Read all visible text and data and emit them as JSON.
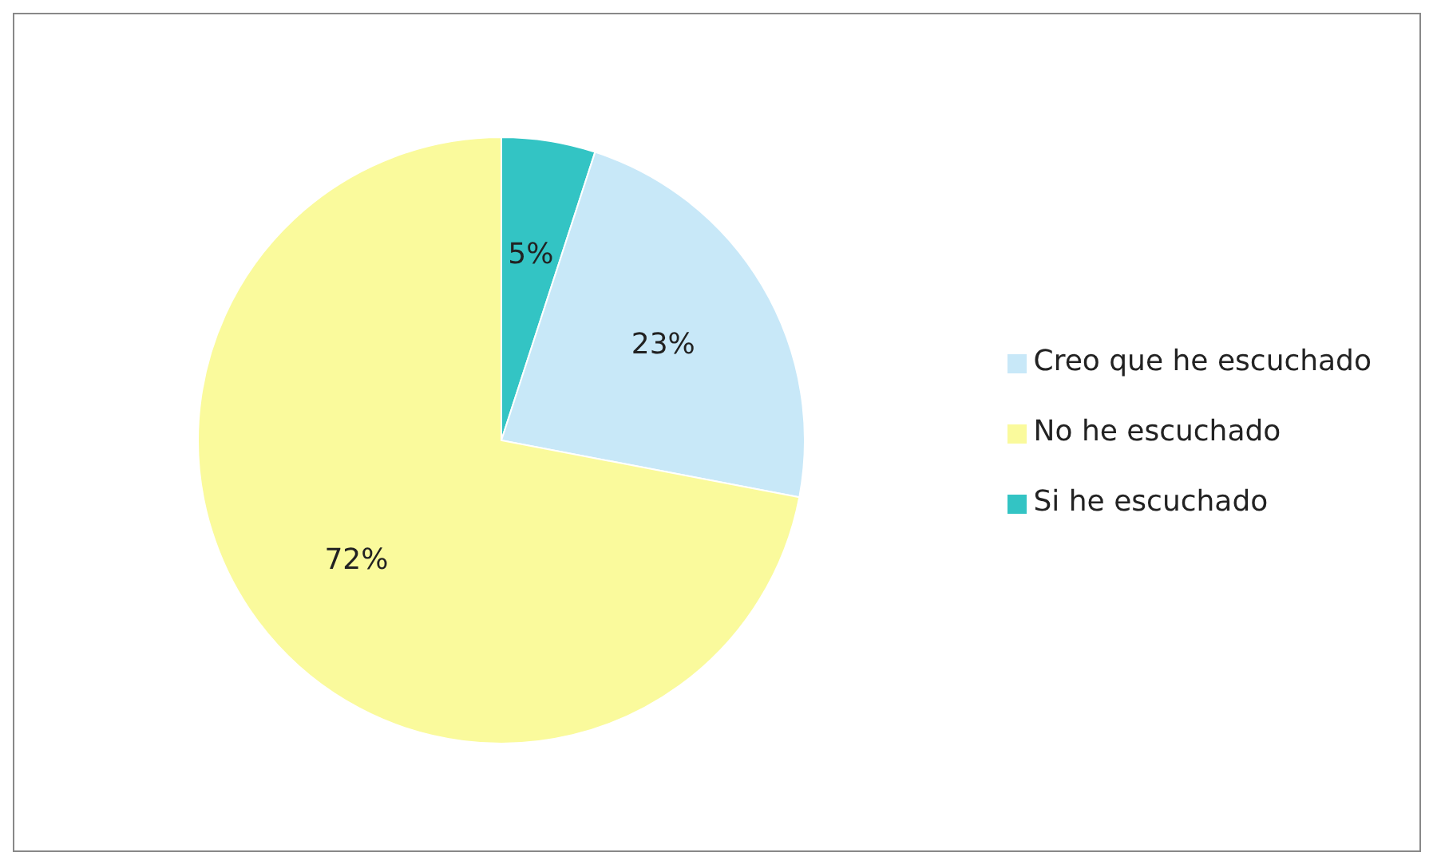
{
  "chart_data": {
    "type": "pie",
    "categories": [
      "Si he escuchado",
      "Creo que he escuchado",
      "No he escuchado"
    ],
    "values": [
      5,
      23,
      72
    ],
    "colors": [
      "#33c4c4",
      "#c8e8f8",
      "#fafa9c"
    ],
    "value_labels": [
      "5%",
      "23%",
      "72%"
    ],
    "legend": "right"
  }
}
